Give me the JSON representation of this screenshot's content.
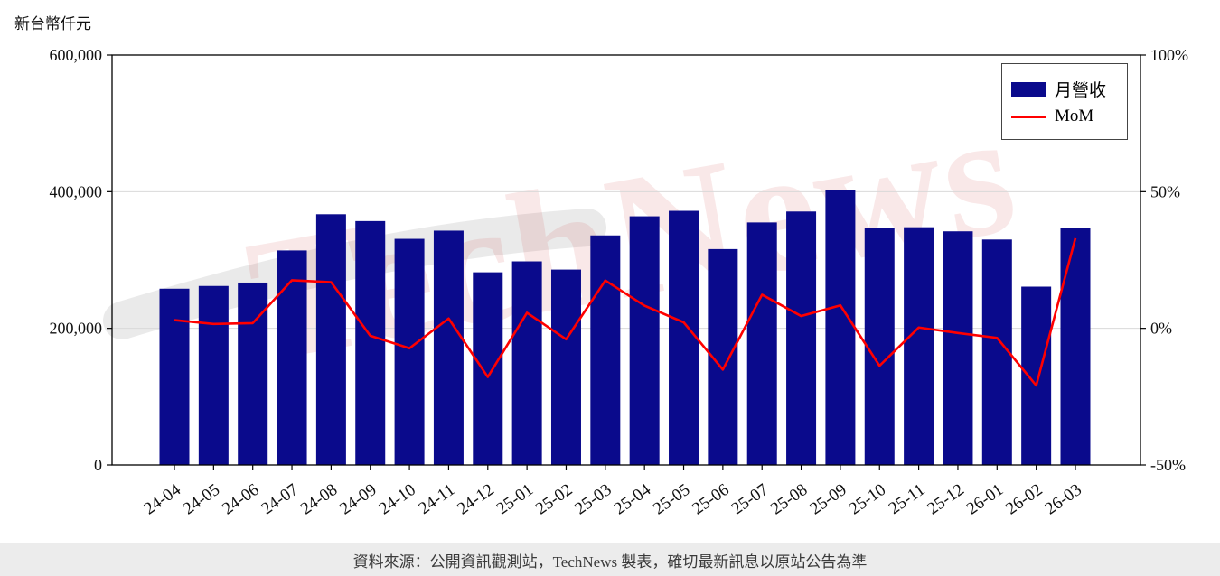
{
  "page": {
    "y_axis_title": "新台幣仟元",
    "watermark": "TechNews",
    "footer": "資料來源：公開資訊觀測站，TechNews 製表，確切最新訊息以原站公告為準"
  },
  "chart_data": {
    "type": "bar",
    "title": "",
    "categories": [
      "24-04",
      "24-05",
      "24-06",
      "24-07",
      "24-08",
      "24-09",
      "24-10",
      "24-11",
      "24-12",
      "25-01",
      "25-02",
      "25-03",
      "25-04",
      "25-05",
      "25-06",
      "25-07",
      "25-08",
      "25-09",
      "25-10",
      "25-11",
      "25-12",
      "26-01",
      "26-02",
      "26-03"
    ],
    "series": [
      {
        "name": "月營收",
        "type": "bar",
        "axis": "left",
        "color": "#0a0a8c",
        "values": [
          258000,
          262000,
          267000,
          314000,
          367000,
          357000,
          331000,
          343000,
          282000,
          298000,
          286000,
          336000,
          364000,
          372000,
          316000,
          355000,
          371000,
          402000,
          347000,
          348000,
          342000,
          330000,
          261000,
          347000
        ]
      },
      {
        "name": "MoM",
        "type": "line",
        "axis": "right",
        "color": "#ff0000",
        "unit": "%",
        "values": [
          3.0,
          1.6,
          1.9,
          17.6,
          16.9,
          -2.7,
          -7.3,
          3.6,
          -17.8,
          5.7,
          -4.0,
          17.5,
          8.3,
          2.2,
          -15.1,
          12.3,
          4.5,
          8.4,
          -13.7,
          0.3,
          -1.7,
          -3.5,
          -20.9,
          33.0
        ]
      }
    ],
    "left_axis": {
      "label": "新台幣仟元",
      "range": [
        0,
        600000
      ],
      "tick_values": [
        0,
        200000,
        400000,
        600000
      ],
      "tick_labels": [
        "0",
        "200,000",
        "400,000",
        "600,000"
      ]
    },
    "right_axis": {
      "range": [
        -50,
        100
      ],
      "tick_values": [
        -50,
        0,
        50,
        100
      ],
      "tick_labels": [
        "-50%",
        "0%",
        "50%",
        "100%"
      ]
    },
    "legend": {
      "position": "top-right",
      "entries": [
        "月營收",
        "MoM"
      ]
    },
    "grid": "horizontal"
  }
}
